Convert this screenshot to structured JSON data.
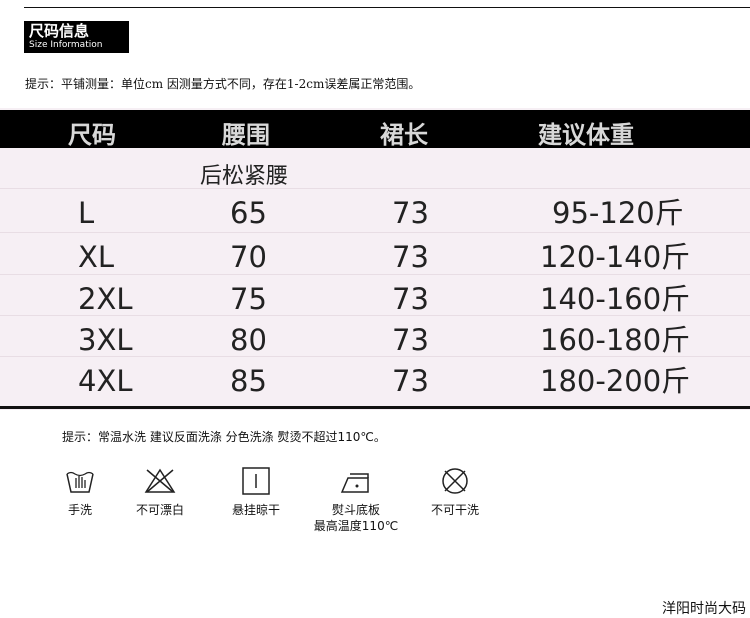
{
  "header": {
    "title_cn": "尺码信息",
    "title_en": "Size Information"
  },
  "measure_tip": "提示：平铺测量：单位cm 因测量方式不同，存在1-2cm误差属正常范围。",
  "table": {
    "columns": [
      "尺码",
      "腰围",
      "裙长",
      "建议体重"
    ],
    "waist_note": "后松紧腰",
    "rows": [
      [
        "L",
        "65",
        "73",
        "95-120斤"
      ],
      [
        "XL",
        "70",
        "73",
        "120-140斤"
      ],
      [
        "2XL",
        "75",
        "73",
        "140-160斤"
      ],
      [
        "3XL",
        "80",
        "73",
        "160-180斤"
      ],
      [
        "4XL",
        "85",
        "73",
        "180-200斤"
      ]
    ]
  },
  "care_tip": "提示：常温水洗 建议反面洗涤 分色洗涤 熨烫不超过110℃。",
  "care": [
    {
      "icon": "hand-wash-icon",
      "label": "手洗"
    },
    {
      "icon": "no-bleach-icon",
      "label": "不可漂白"
    },
    {
      "icon": "hang-dry-icon",
      "label": "悬挂晾干"
    },
    {
      "icon": "iron-icon",
      "label": "熨斗底板",
      "label2": "最高温度110℃"
    },
    {
      "icon": "no-dry-clean-icon",
      "label": "不可干洗"
    }
  ],
  "brand": "洋阳时尚大码"
}
